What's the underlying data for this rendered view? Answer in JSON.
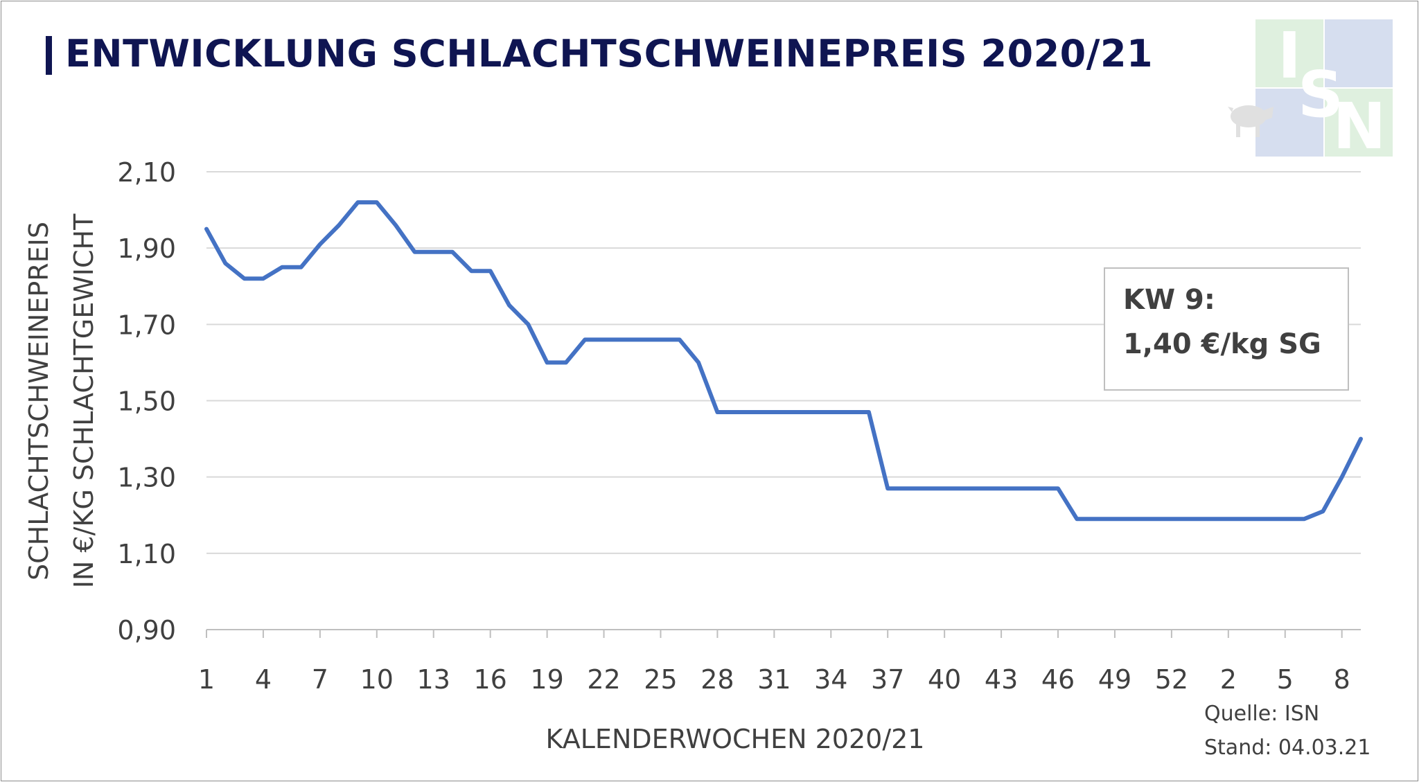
{
  "title": "ENTWICKLUNG SCHLACHTSCHWEINEPREIS 2020/21",
  "logo": {
    "letters": [
      "I",
      "S",
      "N"
    ],
    "icon": "pig-icon"
  },
  "annotation": {
    "line1": "KW 9:",
    "line2": "1,40 €/kg SG"
  },
  "source": {
    "line1": "Quelle: ISN",
    "line2": "Stand: 04.03.21"
  },
  "colors": {
    "line": "#4472c4",
    "title": "#0f1552",
    "grid": "#d9d9d9",
    "text": "#404040"
  },
  "chart_data": {
    "type": "line",
    "xlabel": "KALENDERWOCHEN 2020/21",
    "ylabel": "SCHLACHTSCHWEINEPREIS",
    "ylabel2": "IN €/KG SCHLACHTGEWICHT",
    "ylim": [
      0.9,
      2.1
    ],
    "yticks": [
      "0,90",
      "1,10",
      "1,30",
      "1,50",
      "1,70",
      "1,90",
      "2,10"
    ],
    "ytick_values": [
      0.9,
      1.1,
      1.3,
      1.5,
      1.7,
      1.9,
      2.1
    ],
    "grid": true,
    "x_tick_labels": [
      "1",
      "4",
      "7",
      "10",
      "13",
      "16",
      "19",
      "22",
      "25",
      "28",
      "31",
      "34",
      "37",
      "40",
      "43",
      "46",
      "49",
      "52",
      "2",
      "5",
      "8"
    ],
    "x": [
      "1",
      "2",
      "3",
      "4",
      "5",
      "6",
      "7",
      "8",
      "9",
      "10",
      "11",
      "12",
      "13",
      "14",
      "15",
      "16",
      "17",
      "18",
      "19",
      "20",
      "21",
      "22",
      "23",
      "24",
      "25",
      "26",
      "27",
      "28",
      "29",
      "30",
      "31",
      "32",
      "33",
      "34",
      "35",
      "36",
      "37",
      "38",
      "39",
      "40",
      "41",
      "42",
      "43",
      "44",
      "45",
      "46",
      "47",
      "48",
      "49",
      "50",
      "51",
      "52",
      "53",
      "1",
      "2",
      "3",
      "4",
      "5",
      "6",
      "7",
      "8",
      "9"
    ],
    "series": [
      {
        "values": [
          1.95,
          1.86,
          1.82,
          1.82,
          1.85,
          1.85,
          1.91,
          1.96,
          2.02,
          2.02,
          1.96,
          1.89,
          1.89,
          1.89,
          1.84,
          1.84,
          1.75,
          1.7,
          1.6,
          1.6,
          1.66,
          1.66,
          1.66,
          1.66,
          1.66,
          1.66,
          1.6,
          1.47,
          1.47,
          1.47,
          1.47,
          1.47,
          1.47,
          1.47,
          1.47,
          1.47,
          1.27,
          1.27,
          1.27,
          1.27,
          1.27,
          1.27,
          1.27,
          1.27,
          1.27,
          1.27,
          1.19,
          1.19,
          1.19,
          1.19,
          1.19,
          1.19,
          1.19,
          1.19,
          1.19,
          1.19,
          1.19,
          1.19,
          1.19,
          1.21,
          1.3,
          1.4
        ]
      }
    ]
  }
}
